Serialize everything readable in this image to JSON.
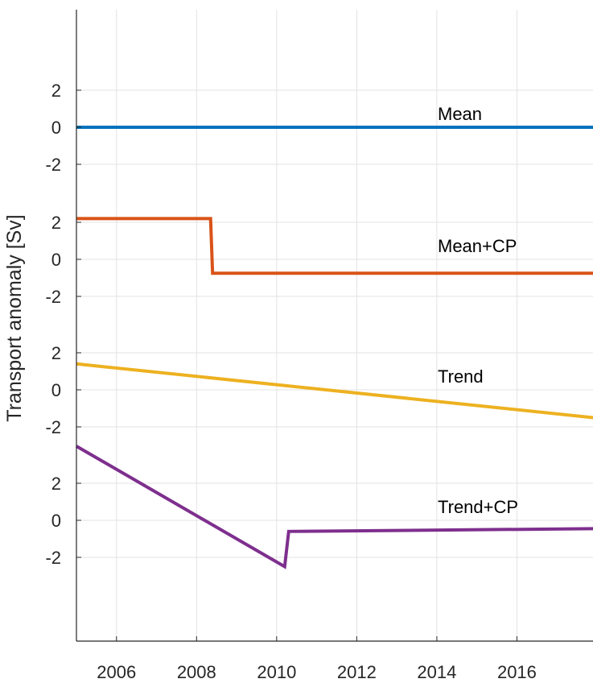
{
  "chart_data": {
    "type": "line",
    "ylabel": "Transport anomaly [Sv]",
    "xlabel": "",
    "xlim": [
      2005,
      2017.9
    ],
    "x_ticks": [
      2006,
      2008,
      2010,
      2012,
      2014,
      2016
    ],
    "x_tick_labels": [
      "2006",
      "2008",
      "2010",
      "2012",
      "2014",
      "2016"
    ],
    "grid": true,
    "legend": "none",
    "offset_panels": [
      {
        "name": "Mean",
        "color": "#0072BD",
        "ylim": [
          -2,
          2
        ],
        "y_tick_labels": [
          "2",
          "0",
          "-2"
        ],
        "points": [
          [
            2005,
            0
          ],
          [
            2017.9,
            0
          ]
        ]
      },
      {
        "name": "Mean+CP",
        "color": "#D95319",
        "ylim": [
          -2,
          2
        ],
        "y_tick_labels": [
          "2",
          "0",
          "-2"
        ],
        "points": [
          [
            2005,
            2.2
          ],
          [
            2008.35,
            2.2
          ],
          [
            2008.4,
            -0.75
          ],
          [
            2017.9,
            -0.75
          ]
        ]
      },
      {
        "name": "Trend",
        "color": "#EDB120",
        "ylim": [
          -2,
          2
        ],
        "y_tick_labels": [
          "2",
          "0",
          "-2"
        ],
        "points": [
          [
            2005,
            1.4
          ],
          [
            2017.9,
            -1.5
          ]
        ]
      },
      {
        "name": "Trend+CP",
        "color": "#7E2F8E",
        "ylim": [
          -2,
          2
        ],
        "y_tick_labels": [
          "2",
          "0",
          "-2"
        ],
        "points": [
          [
            2005,
            4.0
          ],
          [
            2010.2,
            -2.5
          ],
          [
            2010.3,
            -0.6
          ],
          [
            2017.9,
            -0.45
          ]
        ]
      }
    ]
  }
}
